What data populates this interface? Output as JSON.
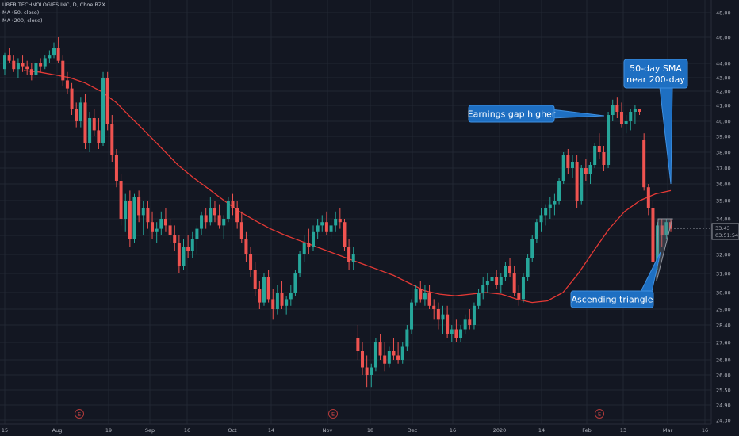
{
  "header": {
    "symbol_line": "UBER TECHNOLOGIES INC, D, Cboe BZX",
    "ma50_label": "MA (50, close)",
    "ma200_label": "MA (200, close)"
  },
  "price_box": {
    "price": "33.43",
    "countdown": "03:51:54"
  },
  "colors": {
    "bg": "#131722",
    "up": "#26a69a",
    "down": "#ef5350",
    "ma": "#e53935",
    "grid": "#222733",
    "callout": "#1e6fc2"
  },
  "chart_data": {
    "type": "candlestick",
    "title": "UBER TECHNOLOGIES INC, D, Cboe BZX",
    "y_ticks": [
      "48.00",
      "46.00",
      "44.00",
      "43.00",
      "42.00",
      "41.00",
      "40.00",
      "39.00",
      "38.00",
      "37.00",
      "36.00",
      "35.00",
      "34.00",
      "33.00",
      "32.00",
      "31.00",
      "30.00",
      "29.00",
      "28.40",
      "27.60",
      "26.80",
      "26.00",
      "25.50",
      "24.90",
      "24.30"
    ],
    "x_ticks": [
      "15",
      "Aug",
      "19",
      "Sep",
      "16",
      "Oct",
      "14",
      "Nov",
      "18",
      "Dec",
      "16",
      "2020",
      "14",
      "Feb",
      "13",
      "Mar",
      "16"
    ],
    "earnings_markers": [
      "E",
      "E",
      "E"
    ],
    "annotations": [
      "Earnings gap higher",
      "50-day SMA\nnear 200-day",
      "Ascending triangle"
    ],
    "candles": [
      [
        43.6,
        44.8,
        43.2,
        44.6
      ],
      [
        44.6,
        45.2,
        44.0,
        44.2
      ],
      [
        44.2,
        44.6,
        43.4,
        43.6
      ],
      [
        43.6,
        44.4,
        43.0,
        44.0
      ],
      [
        44.0,
        44.6,
        43.4,
        43.8
      ],
      [
        43.8,
        44.2,
        43.2,
        43.6
      ],
      [
        43.6,
        44.0,
        42.8,
        43.2
      ],
      [
        43.2,
        44.2,
        43.0,
        44.0
      ],
      [
        44.0,
        44.4,
        43.4,
        43.8
      ],
      [
        43.8,
        44.6,
        43.6,
        44.4
      ],
      [
        44.4,
        45.0,
        44.0,
        44.6
      ],
      [
        44.6,
        45.6,
        44.4,
        45.2
      ],
      [
        45.2,
        46.0,
        44.0,
        44.2
      ],
      [
        44.2,
        44.6,
        42.4,
        42.8
      ],
      [
        42.8,
        43.4,
        41.8,
        42.2
      ],
      [
        42.2,
        42.6,
        40.4,
        40.8
      ],
      [
        40.8,
        41.2,
        39.6,
        40.0
      ],
      [
        40.0,
        41.6,
        39.6,
        41.2
      ],
      [
        41.2,
        41.8,
        38.2,
        38.6
      ],
      [
        38.6,
        40.6,
        38.0,
        40.2
      ],
      [
        40.2,
        40.8,
        39.0,
        39.4
      ],
      [
        39.4,
        40.2,
        38.2,
        38.6
      ],
      [
        38.6,
        43.4,
        38.4,
        43.0
      ],
      [
        43.0,
        43.4,
        39.4,
        39.8
      ],
      [
        39.8,
        40.4,
        37.4,
        37.8
      ],
      [
        37.8,
        38.2,
        35.8,
        36.2
      ],
      [
        36.2,
        36.6,
        33.6,
        34.0
      ],
      [
        34.0,
        35.4,
        33.2,
        35.0
      ],
      [
        35.0,
        35.6,
        32.4,
        32.8
      ],
      [
        32.8,
        35.4,
        32.6,
        35.2
      ],
      [
        35.2,
        35.6,
        33.8,
        34.2
      ],
      [
        34.2,
        35.0,
        33.0,
        34.6
      ],
      [
        34.6,
        35.0,
        33.4,
        33.8
      ],
      [
        33.8,
        34.4,
        32.8,
        33.2
      ],
      [
        33.2,
        33.8,
        32.6,
        33.4
      ],
      [
        33.4,
        34.4,
        33.0,
        34.0
      ],
      [
        34.0,
        34.6,
        33.2,
        33.6
      ],
      [
        33.6,
        34.0,
        32.6,
        33.0
      ],
      [
        33.0,
        33.6,
        32.2,
        32.6
      ],
      [
        32.6,
        33.0,
        31.0,
        31.4
      ],
      [
        31.4,
        32.8,
        31.2,
        32.4
      ],
      [
        32.4,
        33.0,
        31.8,
        32.2
      ],
      [
        32.2,
        33.2,
        31.8,
        32.8
      ],
      [
        32.8,
        33.6,
        32.0,
        33.4
      ],
      [
        33.4,
        34.4,
        33.0,
        34.2
      ],
      [
        34.2,
        34.6,
        33.4,
        33.8
      ],
      [
        33.8,
        35.2,
        33.6,
        34.6
      ],
      [
        34.6,
        35.0,
        33.8,
        34.2
      ],
      [
        34.2,
        34.8,
        33.4,
        33.6
      ],
      [
        33.6,
        34.2,
        32.8,
        34.0
      ],
      [
        34.0,
        35.2,
        33.8,
        35.0
      ],
      [
        35.0,
        35.4,
        34.2,
        34.6
      ],
      [
        34.6,
        35.0,
        33.4,
        33.8
      ],
      [
        33.8,
        34.4,
        32.6,
        32.8
      ],
      [
        32.8,
        33.2,
        31.6,
        32.0
      ],
      [
        32.0,
        32.4,
        30.8,
        31.2
      ],
      [
        31.2,
        31.6,
        29.8,
        30.2
      ],
      [
        30.2,
        30.6,
        29.0,
        29.4
      ],
      [
        29.4,
        31.0,
        29.2,
        30.8
      ],
      [
        30.8,
        31.2,
        29.4,
        29.6
      ],
      [
        29.6,
        30.2,
        28.6,
        29.0
      ],
      [
        29.0,
        30.4,
        28.8,
        30.0
      ],
      [
        30.0,
        30.6,
        29.0,
        29.2
      ],
      [
        29.2,
        29.8,
        28.8,
        29.6
      ],
      [
        29.6,
        30.4,
        29.2,
        30.0
      ],
      [
        30.0,
        31.2,
        29.8,
        31.0
      ],
      [
        31.0,
        32.2,
        30.8,
        32.0
      ],
      [
        32.0,
        33.0,
        31.6,
        32.6
      ],
      [
        32.6,
        33.4,
        32.0,
        32.4
      ],
      [
        32.4,
        33.6,
        32.2,
        33.2
      ],
      [
        33.2,
        34.0,
        32.8,
        33.6
      ],
      [
        33.6,
        34.2,
        33.2,
        33.8
      ],
      [
        33.8,
        34.4,
        33.0,
        33.2
      ],
      [
        33.2,
        34.0,
        32.8,
        33.6
      ],
      [
        33.6,
        34.4,
        33.2,
        34.0
      ],
      [
        34.0,
        34.6,
        33.4,
        33.8
      ],
      [
        33.8,
        34.0,
        32.2,
        32.4
      ],
      [
        32.4,
        32.8,
        31.2,
        31.6
      ],
      [
        31.6,
        32.4,
        31.2,
        32.0
      ],
      [
        27.8,
        28.4,
        26.8,
        27.2
      ],
      [
        27.2,
        27.6,
        26.0,
        26.4
      ],
      [
        26.4,
        27.0,
        25.6,
        26.0
      ],
      [
        26.0,
        26.6,
        25.6,
        26.4
      ],
      [
        26.4,
        27.8,
        26.2,
        27.6
      ],
      [
        27.6,
        28.0,
        26.8,
        27.0
      ],
      [
        27.0,
        27.6,
        26.2,
        26.6
      ],
      [
        26.6,
        27.4,
        26.4,
        27.2
      ],
      [
        27.2,
        27.8,
        26.8,
        27.0
      ],
      [
        27.0,
        27.6,
        26.6,
        26.8
      ],
      [
        26.8,
        27.6,
        26.6,
        27.4
      ],
      [
        27.4,
        28.4,
        27.2,
        28.2
      ],
      [
        28.2,
        29.6,
        28.0,
        29.4
      ],
      [
        29.4,
        30.4,
        29.2,
        30.2
      ],
      [
        30.2,
        30.6,
        29.4,
        29.6
      ],
      [
        29.6,
        30.4,
        29.2,
        30.0
      ],
      [
        30.0,
        30.4,
        29.0,
        29.2
      ],
      [
        29.2,
        29.6,
        28.6,
        29.0
      ],
      [
        29.0,
        29.4,
        28.2,
        28.6
      ],
      [
        28.6,
        29.2,
        28.0,
        28.8
      ],
      [
        28.8,
        29.2,
        27.8,
        28.0
      ],
      [
        28.0,
        28.4,
        27.6,
        28.2
      ],
      [
        28.2,
        28.6,
        27.6,
        27.8
      ],
      [
        27.8,
        28.4,
        27.6,
        28.2
      ],
      [
        28.2,
        28.8,
        28.0,
        28.6
      ],
      [
        28.6,
        29.0,
        28.2,
        28.4
      ],
      [
        28.4,
        29.4,
        28.2,
        29.2
      ],
      [
        29.2,
        30.2,
        29.0,
        30.0
      ],
      [
        30.0,
        30.8,
        29.6,
        30.4
      ],
      [
        30.4,
        31.0,
        30.0,
        30.6
      ],
      [
        30.6,
        31.0,
        30.2,
        30.8
      ],
      [
        30.8,
        31.2,
        30.2,
        30.4
      ],
      [
        30.4,
        31.0,
        30.0,
        30.8
      ],
      [
        30.8,
        31.6,
        30.6,
        31.4
      ],
      [
        31.4,
        31.8,
        30.8,
        31.0
      ],
      [
        31.0,
        31.4,
        29.8,
        30.0
      ],
      [
        30.0,
        30.4,
        29.2,
        29.6
      ],
      [
        29.6,
        31.0,
        29.4,
        30.8
      ],
      [
        30.8,
        32.0,
        30.6,
        31.8
      ],
      [
        31.8,
        33.0,
        31.6,
        32.8
      ],
      [
        32.8,
        34.0,
        32.6,
        33.8
      ],
      [
        33.8,
        34.6,
        33.2,
        34.2
      ],
      [
        34.2,
        34.8,
        33.6,
        34.6
      ],
      [
        34.6,
        35.2,
        34.0,
        34.8
      ],
      [
        34.8,
        35.4,
        34.2,
        35.0
      ],
      [
        35.0,
        36.4,
        34.8,
        36.2
      ],
      [
        36.2,
        38.0,
        36.0,
        37.8
      ],
      [
        37.8,
        38.2,
        36.6,
        37.0
      ],
      [
        37.0,
        37.8,
        36.4,
        37.4
      ],
      [
        37.4,
        37.8,
        34.6,
        35.0
      ],
      [
        35.0,
        37.2,
        34.8,
        37.0
      ],
      [
        37.0,
        37.6,
        36.2,
        36.6
      ],
      [
        36.6,
        37.4,
        36.0,
        37.2
      ],
      [
        37.2,
        38.6,
        37.0,
        38.4
      ],
      [
        38.4,
        39.2,
        37.6,
        38.0
      ],
      [
        38.0,
        38.4,
        36.8,
        37.2
      ],
      [
        37.2,
        40.6,
        37.0,
        40.4
      ],
      [
        40.4,
        41.4,
        40.0,
        41.0
      ],
      [
        41.0,
        41.6,
        40.2,
        40.6
      ],
      [
        40.6,
        41.2,
        39.6,
        39.8
      ],
      [
        39.8,
        40.4,
        39.2,
        40.0
      ],
      [
        40.0,
        40.8,
        39.4,
        40.6
      ],
      [
        40.6,
        41.0,
        39.8,
        40.8
      ],
      [
        40.8,
        40.8,
        40.4,
        40.6
      ],
      [
        38.8,
        39.2,
        35.6,
        35.8
      ],
      [
        35.8,
        36.0,
        34.2,
        34.6
      ],
      [
        34.6,
        35.0,
        31.0,
        31.6
      ],
      [
        31.6,
        33.8,
        31.2,
        33.6
      ],
      [
        33.6,
        34.0,
        32.4,
        33.0
      ],
      [
        33.0,
        34.0,
        32.8,
        33.8
      ],
      [
        33.8,
        34.0,
        33.2,
        33.4
      ]
    ],
    "sma50": [
      43.5,
      43.4,
      43.2,
      43.0,
      42.6,
      42.0,
      41.2,
      40.2,
      39.2,
      38.2,
      37.2,
      36.4,
      35.7,
      35.0,
      34.4,
      33.9,
      33.4,
      33.0,
      32.7,
      32.4,
      32.1,
      31.8,
      31.5,
      31.2,
      30.9,
      30.5,
      30.1,
      29.9,
      29.8,
      29.9,
      30.0,
      29.9,
      29.6,
      29.4,
      29.5,
      30.0,
      31.0,
      32.2,
      33.4,
      34.4,
      35.0,
      35.4,
      35.6
    ]
  }
}
